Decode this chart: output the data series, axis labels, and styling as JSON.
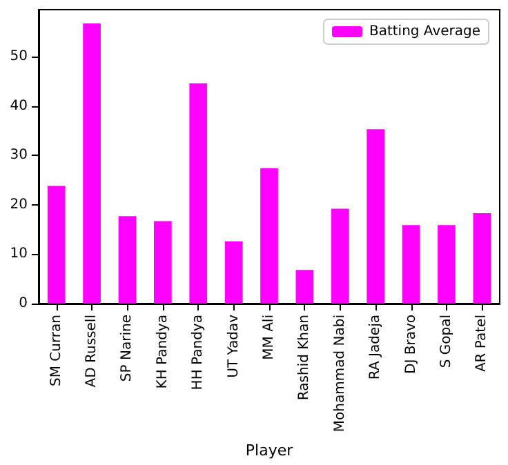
{
  "chart_data": {
    "type": "bar",
    "xlabel": "Player",
    "categories": [
      "SM Curran",
      "AD Russell",
      "SP Narine",
      "KH Pandya",
      "HH Pandya",
      "UT Yadav",
      "MM Ali",
      "Rashid Khan",
      "Mohammad Nabi",
      "RA Jadeja",
      "DJ Bravo",
      "S Gopal",
      "AR Patel"
    ],
    "series": [
      {
        "name": "Batting Average",
        "color": "#ff00ff",
        "values": [
          23.8,
          56.7,
          17.7,
          16.7,
          44.6,
          12.6,
          27.4,
          6.8,
          19.2,
          35.3,
          15.9,
          15.9,
          18.3
        ]
      }
    ],
    "ylim": [
      0,
      59.5
    ],
    "yticks": [
      0,
      10,
      20,
      30,
      40,
      50
    ],
    "grid": false,
    "legend": "top right"
  }
}
